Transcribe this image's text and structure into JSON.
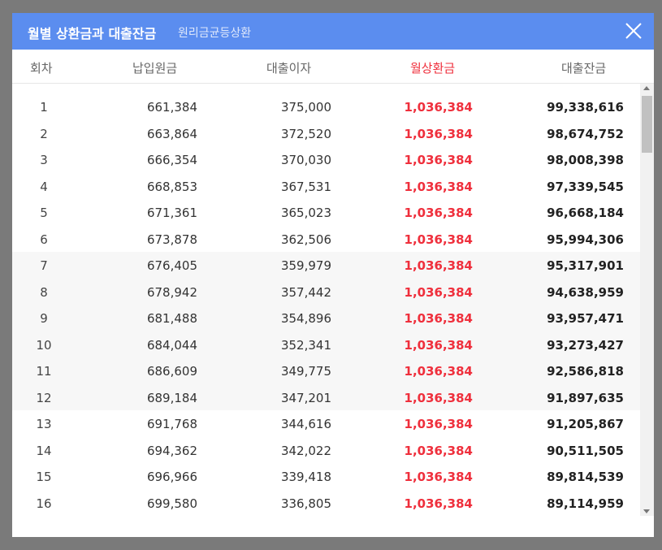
{
  "modal": {
    "title": "월별 상환금과 대출잔금",
    "subtitle": "원리금균등상환"
  },
  "columns": {
    "no": "회차",
    "principal": "납입원금",
    "interest": "대출이자",
    "payment": "월상환금",
    "balance": "대출잔금"
  },
  "rows": [
    {
      "no": "1",
      "principal": "661,384",
      "interest": "375,000",
      "payment": "1,036,384",
      "balance": "99,338,616"
    },
    {
      "no": "2",
      "principal": "663,864",
      "interest": "372,520",
      "payment": "1,036,384",
      "balance": "98,674,752"
    },
    {
      "no": "3",
      "principal": "666,354",
      "interest": "370,030",
      "payment": "1,036,384",
      "balance": "98,008,398"
    },
    {
      "no": "4",
      "principal": "668,853",
      "interest": "367,531",
      "payment": "1,036,384",
      "balance": "97,339,545"
    },
    {
      "no": "5",
      "principal": "671,361",
      "interest": "365,023",
      "payment": "1,036,384",
      "balance": "96,668,184"
    },
    {
      "no": "6",
      "principal": "673,878",
      "interest": "362,506",
      "payment": "1,036,384",
      "balance": "95,994,306"
    },
    {
      "no": "7",
      "principal": "676,405",
      "interest": "359,979",
      "payment": "1,036,384",
      "balance": "95,317,901"
    },
    {
      "no": "8",
      "principal": "678,942",
      "interest": "357,442",
      "payment": "1,036,384",
      "balance": "94,638,959"
    },
    {
      "no": "9",
      "principal": "681,488",
      "interest": "354,896",
      "payment": "1,036,384",
      "balance": "93,957,471"
    },
    {
      "no": "10",
      "principal": "684,044",
      "interest": "352,341",
      "payment": "1,036,384",
      "balance": "93,273,427"
    },
    {
      "no": "11",
      "principal": "686,609",
      "interest": "349,775",
      "payment": "1,036,384",
      "balance": "92,586,818"
    },
    {
      "no": "12",
      "principal": "689,184",
      "interest": "347,201",
      "payment": "1,036,384",
      "balance": "91,897,635"
    },
    {
      "no": "13",
      "principal": "691,768",
      "interest": "344,616",
      "payment": "1,036,384",
      "balance": "91,205,867"
    },
    {
      "no": "14",
      "principal": "694,362",
      "interest": "342,022",
      "payment": "1,036,384",
      "balance": "90,511,505"
    },
    {
      "no": "15",
      "principal": "696,966",
      "interest": "339,418",
      "payment": "1,036,384",
      "balance": "89,814,539"
    },
    {
      "no": "16",
      "principal": "699,580",
      "interest": "336,805",
      "payment": "1,036,384",
      "balance": "89,114,959"
    }
  ],
  "colors": {
    "header_bg": "#5b8def",
    "payment_red": "#ef2f3c"
  },
  "icons": {
    "close": "close-icon"
  }
}
